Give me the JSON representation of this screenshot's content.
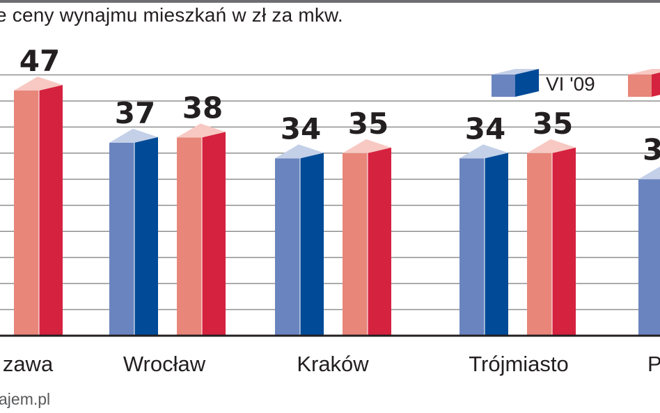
{
  "header": {
    "title": "e ceny wynajmu mieszkań w zł za mkw."
  },
  "footer": {
    "source": "ajem.pl"
  },
  "legend": {
    "items": [
      "VI '09",
      ""
    ]
  },
  "colors": {
    "series1_front": "#6a84bf",
    "series1_side": "#004a97",
    "series1_top": "#c3d0e8",
    "series2_front": "#e8867a",
    "series2_side": "#d5223f",
    "series2_top": "#f7c9c2",
    "grid": "#8f8f8f",
    "baseline": "#231f20"
  },
  "chart_data": {
    "type": "bar",
    "title": "e ceny wynajmu mieszkań w zł za mkw.",
    "xlabel": "",
    "ylabel": "",
    "categories": [
      "zawa",
      "Wrocław",
      "Kraków",
      "Trójmiasto",
      "P"
    ],
    "series": [
      {
        "name": "VI '09",
        "values": [
          null,
          37,
          34,
          34,
          3
        ]
      },
      {
        "name": "",
        "values": [
          47,
          38,
          35,
          35,
          null
        ]
      }
    ],
    "value_labels": [
      [
        "",
        "37",
        "34",
        "34",
        "3"
      ],
      [
        "47",
        "38",
        "35",
        "35",
        ""
      ]
    ],
    "partial_values": [
      null,
      null,
      null,
      null,
      30
    ],
    "ylim": [
      0,
      50
    ],
    "grid": true,
    "legend_position": "top-right"
  }
}
